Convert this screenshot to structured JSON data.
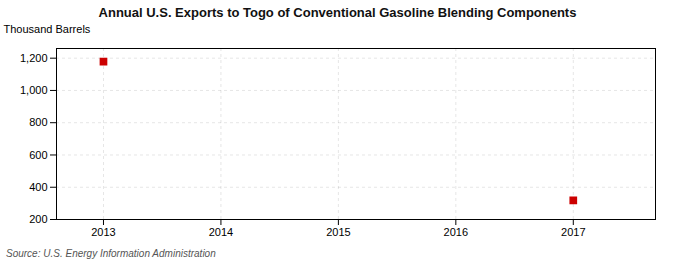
{
  "chart_data": {
    "type": "scatter",
    "title": "Annual U.S. Exports to Togo of Conventional Gasoline Blending Components",
    "ylabel": "Thousand Barrels",
    "source": "Source: U.S. Energy Information Administration",
    "x": [
      2013,
      2017
    ],
    "values": [
      1179,
      319
    ],
    "color": "#cc0000",
    "marker": "square",
    "xlim": [
      2012.6,
      2017.7
    ],
    "ylim": [
      200,
      1260
    ],
    "xticks": [
      2013,
      2014,
      2015,
      2016,
      2017
    ],
    "yticks": [
      200,
      400,
      600,
      800,
      {
        "value": 1000,
        "label": "1,000"
      },
      {
        "value": 1200,
        "label": "1,200"
      }
    ],
    "grid": true
  }
}
